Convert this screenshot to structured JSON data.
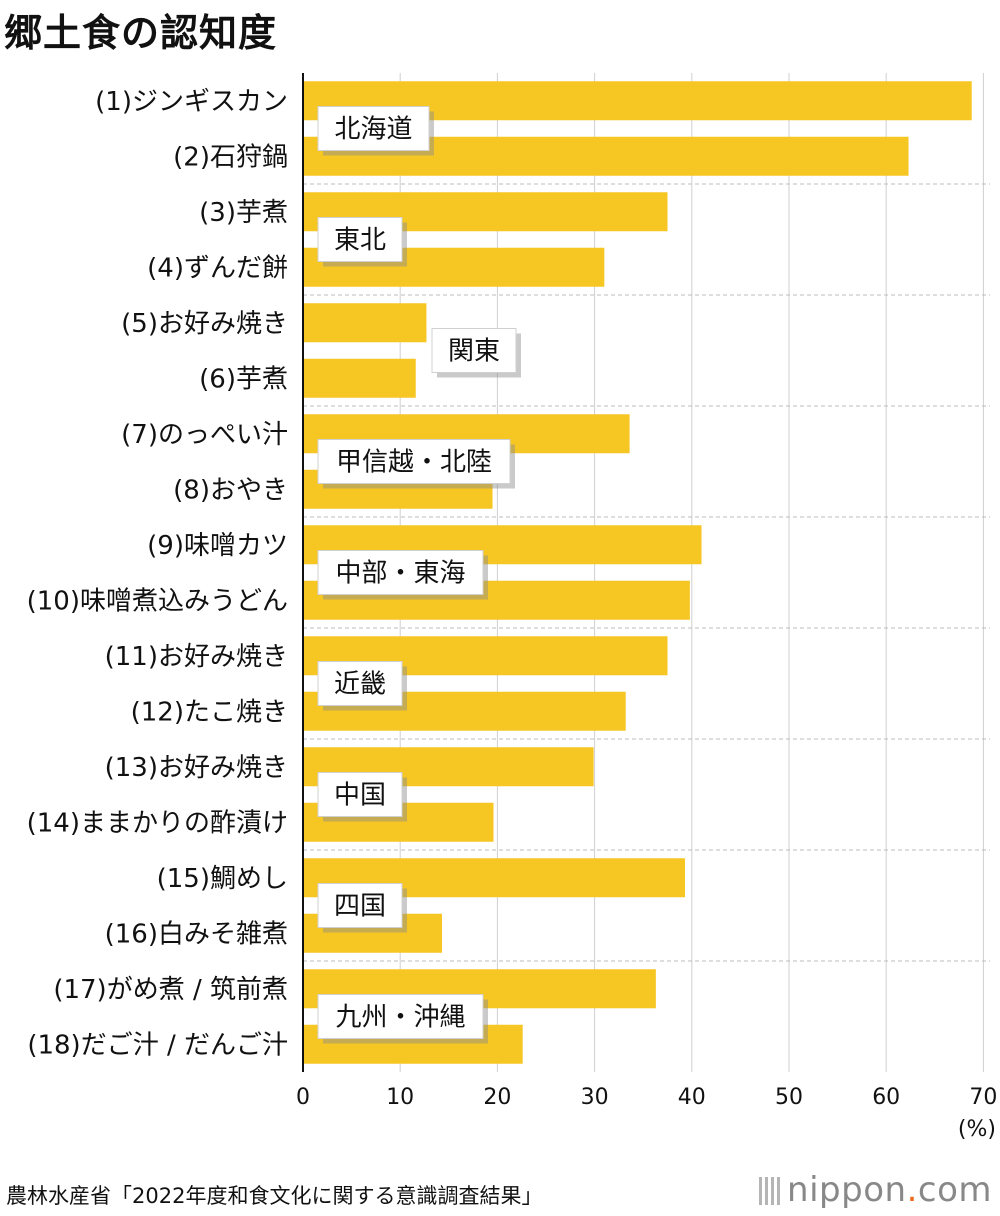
{
  "chart_data": {
    "type": "bar",
    "orientation": "horizontal",
    "title": "郷土食の認知度",
    "unit_label": "(%)",
    "xlim": [
      0,
      70
    ],
    "xticks": [
      0,
      10,
      20,
      30,
      40,
      50,
      60,
      70
    ],
    "grid": true,
    "bar_color": "#f6c623",
    "categories": [
      "(1)ジンギスカン",
      "(2)石狩鍋",
      "(3)芋煮",
      "(4)ずんだ餅",
      "(5)お好み焼き",
      "(6)芋煮",
      "(7)のっぺい汁",
      "(8)おやき",
      "(9)味噌カツ",
      "(10)味噌煮込みうどん",
      "(11)お好み焼き",
      "(12)たこ焼き",
      "(13)お好み焼き",
      "(14)ままかりの酢漬け",
      "(15)鯛めし",
      "(16)白みそ雑煮",
      "(17)がめ煮 / 筑前煮",
      "(18)だご汁 / だんご汁"
    ],
    "values": [
      68.8,
      62.3,
      37.5,
      31.0,
      12.7,
      11.6,
      33.6,
      19.5,
      41.0,
      39.8,
      37.5,
      33.2,
      29.9,
      19.6,
      39.3,
      14.3,
      36.3,
      22.6
    ],
    "regions": [
      "北海道",
      "東北",
      "関東",
      "甲信越・北陸",
      "中部・東海",
      "近畿",
      "中国",
      "四国",
      "九州・沖縄"
    ]
  },
  "footer": {
    "source": "農林水産省「2022年度和食文化に関する意識調査結果」",
    "logo_main": "nippon",
    "logo_dot": ".",
    "logo_suffix": "com"
  }
}
